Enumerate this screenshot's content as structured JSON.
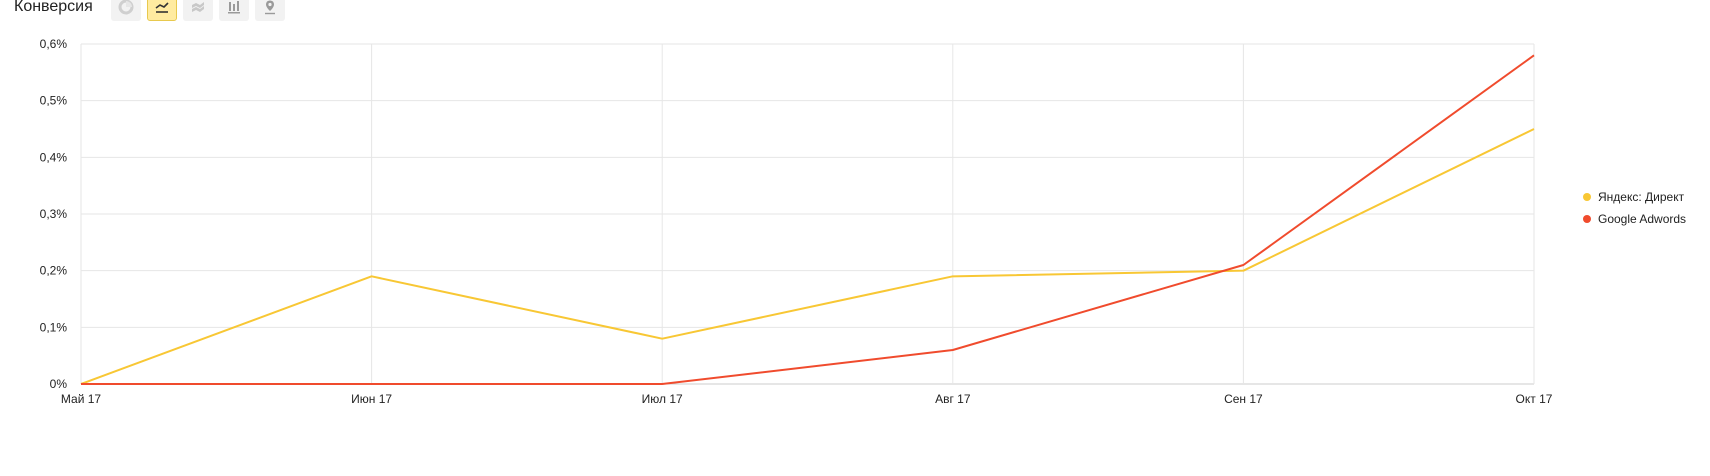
{
  "header": {
    "title": "Конверсия",
    "tools": [
      {
        "icon": "pie-chart-icon",
        "active": false
      },
      {
        "icon": "line-chart-icon",
        "active": true
      },
      {
        "icon": "area-chart-icon",
        "active": false
      },
      {
        "icon": "bar-chart-icon",
        "active": false
      },
      {
        "icon": "map-pin-icon",
        "active": false
      }
    ]
  },
  "colors": {
    "yandex": "#f8c734",
    "google": "#f04b2d",
    "grid": "#e6e6e6",
    "axis": "#cccccc"
  },
  "chart_data": {
    "type": "line",
    "title": "Конверсия",
    "categories": [
      "Май 17",
      "Июн 17",
      "Июл 17",
      "Авг 17",
      "Сен 17",
      "Окт 17"
    ],
    "yticks": [
      "0%",
      "0,1%",
      "0,2%",
      "0,3%",
      "0,4%",
      "0,5%",
      "0,6%"
    ],
    "ylim": [
      0,
      0.6
    ],
    "grid": true,
    "legend_position": "right",
    "series": [
      {
        "name": "Яндекс: Директ",
        "color": "#f8c734",
        "values": [
          0.0,
          0.19,
          0.08,
          0.19,
          0.2,
          0.45
        ]
      },
      {
        "name": "Google Adwords",
        "color": "#f04b2d",
        "values": [
          0.0,
          0.0,
          0.0,
          0.06,
          0.21,
          0.58
        ]
      }
    ]
  }
}
